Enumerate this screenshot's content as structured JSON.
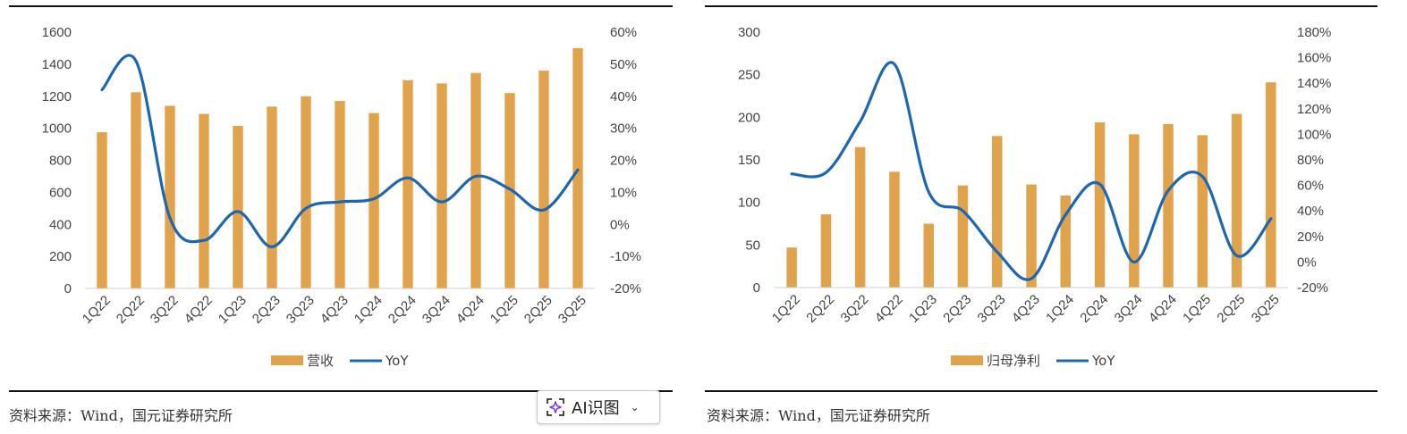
{
  "ai_button": {
    "label": "AI识图",
    "chevron": "⌄",
    "icon": "sparkle-scan-icon",
    "accent": "#7b3fe4"
  },
  "chart_data": [
    {
      "type": "bar+line",
      "categories": [
        "1Q22",
        "2Q22",
        "3Q22",
        "4Q22",
        "1Q23",
        "2Q23",
        "3Q23",
        "4Q23",
        "1Q24",
        "2Q24",
        "3Q24",
        "4Q24",
        "1Q25",
        "2Q25",
        "3Q25"
      ],
      "series": [
        {
          "name": "营收",
          "type": "bar",
          "axis": "left",
          "color": "#e0a24b",
          "values": [
            975,
            1225,
            1140,
            1090,
            1015,
            1135,
            1200,
            1170,
            1095,
            1300,
            1280,
            1345,
            1220,
            1360,
            1500
          ]
        },
        {
          "name": "YoY",
          "type": "line",
          "axis": "right",
          "color": "#1f66b0",
          "values": [
            0.42,
            0.51,
            0.02,
            -0.05,
            0.04,
            -0.07,
            0.05,
            0.07,
            0.08,
            0.145,
            0.07,
            0.15,
            0.11,
            0.045,
            0.17
          ]
        }
      ],
      "y_left": {
        "min": 0,
        "max": 1600,
        "ticks": [
          "0",
          "200",
          "400",
          "600",
          "800",
          "1000",
          "1200",
          "1400",
          "1600"
        ]
      },
      "y_right": {
        "min": -0.2,
        "max": 0.6,
        "ticks": [
          "-20%",
          "-10%",
          "0%",
          "10%",
          "20%",
          "30%",
          "40%",
          "50%",
          "60%"
        ]
      },
      "legend_position": "bottom",
      "source": "资料来源：Wind，国元证券研究所"
    },
    {
      "type": "bar+line",
      "categories": [
        "1Q22",
        "2Q22",
        "3Q22",
        "4Q22",
        "1Q23",
        "2Q23",
        "3Q23",
        "4Q23",
        "1Q24",
        "2Q24",
        "3Q24",
        "4Q24",
        "1Q25",
        "2Q25",
        "3Q25"
      ],
      "series": [
        {
          "name": "归母净利",
          "type": "bar",
          "axis": "left",
          "color": "#e0a24b",
          "values": [
            47,
            86,
            165,
            136,
            75,
            120,
            178,
            121,
            108,
            194,
            180,
            192,
            179,
            204,
            241
          ]
        },
        {
          "name": "YoY",
          "type": "line",
          "axis": "right",
          "color": "#1f66b0",
          "values": [
            0.69,
            0.7,
            1.1,
            1.55,
            0.55,
            0.4,
            0.08,
            -0.13,
            0.37,
            0.61,
            0.0,
            0.56,
            0.67,
            0.05,
            0.34
          ]
        }
      ],
      "y_left": {
        "min": 0,
        "max": 300,
        "ticks": [
          "0",
          "50",
          "100",
          "150",
          "200",
          "250",
          "300"
        ]
      },
      "y_right": {
        "min": -0.2,
        "max": 1.8,
        "ticks": [
          "-20%",
          "0%",
          "20%",
          "40%",
          "60%",
          "80%",
          "100%",
          "120%",
          "140%",
          "160%",
          "180%"
        ]
      },
      "legend_position": "bottom",
      "source": "资料来源：Wind，国元证券研究所"
    }
  ]
}
